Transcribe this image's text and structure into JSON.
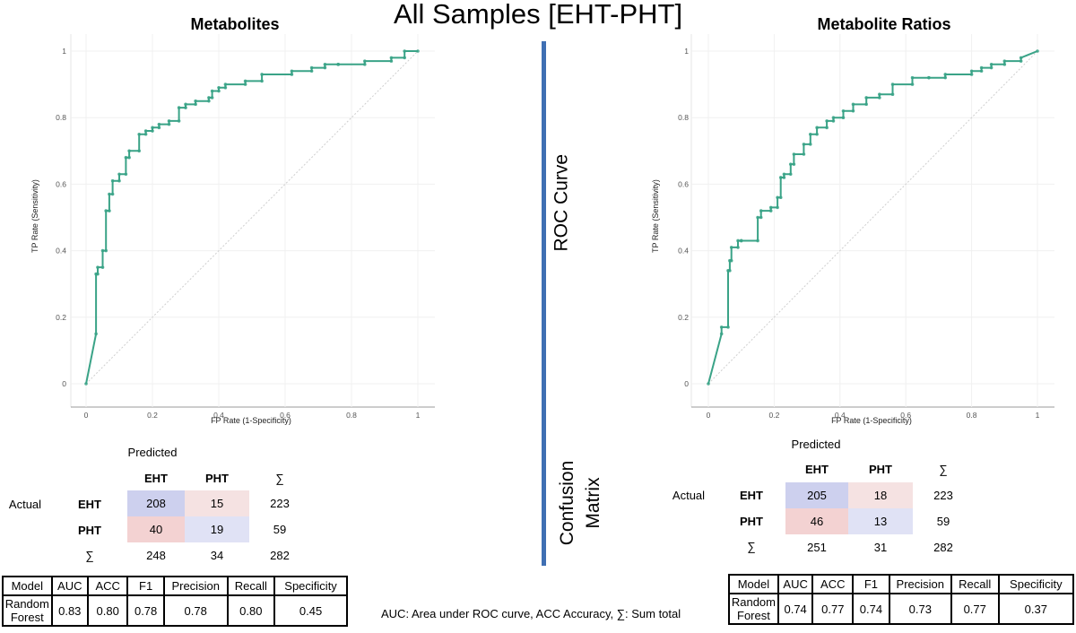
{
  "title": "All Samples [EHT-PHT]",
  "divider_labels": {
    "roc": "ROC Curve",
    "cm_line1": "Confusion",
    "cm_line2": "Matrix"
  },
  "footnote": "AUC: Area under ROC curve, ACC Accuracy, ∑: Sum total",
  "colors": {
    "curve": "#3aa387",
    "divider": "#3f6fb3",
    "cm_blue": "#cdd0ee",
    "cm_red": "#f3d2d2",
    "cm_blue_light": "#e0e2f5",
    "cm_red_light": "#f5e2e2"
  },
  "chart_data": [
    {
      "type": "line",
      "title": "Metabolites",
      "xlabel": "FP Rate (1-Specificity)",
      "ylabel": "TP Rate (Sensitivity)",
      "xlim": [
        0,
        1
      ],
      "ylim": [
        0,
        1
      ],
      "xticks": [
        "0",
        "0.2",
        "0.4",
        "0.6",
        "0.8",
        "1"
      ],
      "yticks": [
        "0",
        "0.2",
        "0.4",
        "0.6",
        "0.8",
        "1"
      ],
      "diagonal": true,
      "x": [
        0,
        0.03,
        0.03,
        0.035,
        0.035,
        0.05,
        0.05,
        0.06,
        0.06,
        0.07,
        0.07,
        0.08,
        0.08,
        0.1,
        0.1,
        0.12,
        0.12,
        0.13,
        0.13,
        0.16,
        0.16,
        0.18,
        0.18,
        0.2,
        0.2,
        0.22,
        0.22,
        0.25,
        0.25,
        0.28,
        0.28,
        0.3,
        0.3,
        0.33,
        0.33,
        0.37,
        0.37,
        0.38,
        0.38,
        0.4,
        0.4,
        0.42,
        0.42,
        0.48,
        0.48,
        0.53,
        0.53,
        0.62,
        0.62,
        0.68,
        0.68,
        0.72,
        0.72,
        0.76,
        0.76,
        0.84,
        0.84,
        0.92,
        0.92,
        0.96,
        0.96,
        1
      ],
      "y": [
        0,
        0.15,
        0.33,
        0.33,
        0.35,
        0.35,
        0.4,
        0.4,
        0.52,
        0.52,
        0.57,
        0.57,
        0.61,
        0.61,
        0.63,
        0.63,
        0.68,
        0.68,
        0.7,
        0.7,
        0.75,
        0.75,
        0.76,
        0.76,
        0.77,
        0.77,
        0.78,
        0.78,
        0.79,
        0.79,
        0.83,
        0.83,
        0.84,
        0.84,
        0.85,
        0.85,
        0.86,
        0.86,
        0.88,
        0.88,
        0.89,
        0.89,
        0.9,
        0.9,
        0.91,
        0.91,
        0.93,
        0.93,
        0.94,
        0.94,
        0.95,
        0.95,
        0.96,
        0.96,
        0.96,
        0.96,
        0.97,
        0.97,
        0.98,
        0.98,
        1,
        1
      ]
    },
    {
      "type": "line",
      "title": "Metabolite Ratios",
      "xlabel": "FP Rate (1-Specificity)",
      "ylabel": "TP Rate (Sensitivity)",
      "xlim": [
        0,
        1
      ],
      "ylim": [
        0,
        1
      ],
      "xticks": [
        "0",
        "0.2",
        "0.4",
        "0.6",
        "0.8",
        "1"
      ],
      "yticks": [
        "0",
        "0.2",
        "0.4",
        "0.6",
        "0.8",
        "1"
      ],
      "diagonal": true,
      "x": [
        0,
        0.04,
        0.04,
        0.06,
        0.06,
        0.065,
        0.065,
        0.07,
        0.07,
        0.09,
        0.09,
        0.1,
        0.1,
        0.15,
        0.15,
        0.16,
        0.16,
        0.19,
        0.19,
        0.21,
        0.21,
        0.22,
        0.22,
        0.23,
        0.23,
        0.25,
        0.25,
        0.26,
        0.26,
        0.29,
        0.29,
        0.31,
        0.31,
        0.33,
        0.33,
        0.36,
        0.36,
        0.38,
        0.38,
        0.41,
        0.41,
        0.44,
        0.44,
        0.48,
        0.48,
        0.52,
        0.52,
        0.56,
        0.56,
        0.62,
        0.62,
        0.67,
        0.67,
        0.72,
        0.72,
        0.8,
        0.8,
        0.83,
        0.83,
        0.86,
        0.86,
        0.9,
        0.9,
        0.95,
        0.95,
        1
      ],
      "y": [
        0,
        0.15,
        0.17,
        0.17,
        0.34,
        0.34,
        0.37,
        0.37,
        0.41,
        0.41,
        0.43,
        0.43,
        0.43,
        0.43,
        0.5,
        0.5,
        0.52,
        0.52,
        0.53,
        0.53,
        0.56,
        0.56,
        0.62,
        0.62,
        0.63,
        0.63,
        0.66,
        0.66,
        0.69,
        0.69,
        0.72,
        0.72,
        0.75,
        0.75,
        0.77,
        0.77,
        0.79,
        0.79,
        0.8,
        0.8,
        0.82,
        0.82,
        0.84,
        0.84,
        0.86,
        0.86,
        0.87,
        0.87,
        0.9,
        0.9,
        0.92,
        0.92,
        0.92,
        0.92,
        0.93,
        0.93,
        0.94,
        0.94,
        0.95,
        0.95,
        0.96,
        0.96,
        0.97,
        0.97,
        0.98,
        1
      ]
    }
  ],
  "confusion_matrices": [
    {
      "predicted_label": "Predicted",
      "actual_label": "Actual",
      "col_headers": [
        "EHT",
        "PHT",
        "∑"
      ],
      "row_headers": [
        "EHT",
        "PHT",
        "∑"
      ],
      "rows": [
        [
          "208",
          "15",
          "223"
        ],
        [
          "40",
          "19",
          "59"
        ],
        [
          "248",
          "34",
          "282"
        ]
      ]
    },
    {
      "predicted_label": "Predicted",
      "actual_label": "Actual",
      "col_headers": [
        "EHT",
        "PHT",
        "∑"
      ],
      "row_headers": [
        "EHT",
        "PHT",
        "∑"
      ],
      "rows": [
        [
          "205",
          "18",
          "223"
        ],
        [
          "46",
          "13",
          "59"
        ],
        [
          "251",
          "31",
          "282"
        ]
      ]
    }
  ],
  "metrics_tables": [
    {
      "headers": [
        "Model",
        "AUC",
        "ACC",
        "F1",
        "Precision",
        "Recall",
        "Specificity"
      ],
      "model_line1": "Random",
      "model_line2": "Forest",
      "values": [
        "0.83",
        "0.80",
        "0.78",
        "0.78",
        "0.80",
        "0.45"
      ]
    },
    {
      "headers": [
        "Model",
        "AUC",
        "ACC",
        "F1",
        "Precision",
        "Recall",
        "Specificity"
      ],
      "model_line1": "Random",
      "model_line2": "Forest",
      "values": [
        "0.74",
        "0.77",
        "0.74",
        "0.73",
        "0.77",
        "0.37"
      ]
    }
  ]
}
